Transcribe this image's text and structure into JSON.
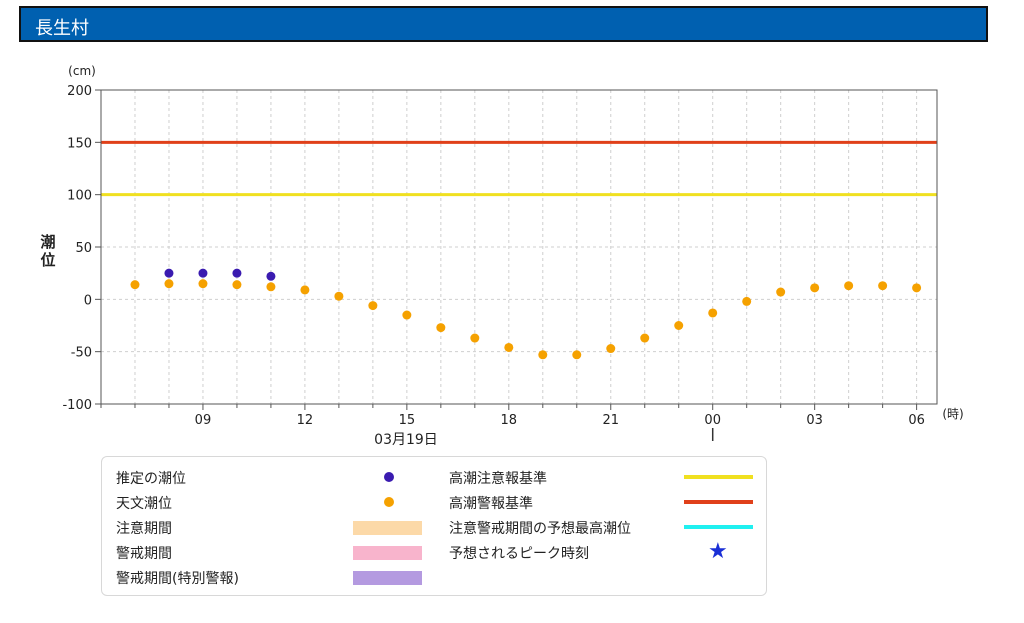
{
  "header": {
    "title": "長生村"
  },
  "colors": {
    "header_bg": "#0060b0",
    "estimated": "#3a1bb0",
    "astronomical": "#f5a100",
    "caution_line": "#f0e020",
    "warning_line": "#e0401a",
    "caution_period": "#fcd9a8",
    "warning_period": "#f8b4cc",
    "special_warning_period": "#b49ae0",
    "peak_line": "#20f0f0",
    "peak_star": "#1a2fd6"
  },
  "chart_data": {
    "type": "scatter",
    "ylabel": "潮位",
    "yunit": "(cm)",
    "xunit": "(時)",
    "ylim": [
      -100,
      200
    ],
    "yticks": [
      "200",
      "150",
      "100",
      "50",
      "0",
      "-50",
      "-100"
    ],
    "xticks": [
      {
        "hour": 9,
        "label": "09"
      },
      {
        "hour": 12,
        "label": "12"
      },
      {
        "hour": 15,
        "label": "15"
      },
      {
        "hour": 18,
        "label": "18"
      },
      {
        "hour": 21,
        "label": "21"
      },
      {
        "hour": 24,
        "label": "00"
      },
      {
        "hour": 27,
        "label": "03"
      },
      {
        "hour": 30,
        "label": "06"
      }
    ],
    "date_label": "03月19日",
    "xlim_hours": [
      6,
      30.6
    ],
    "grid": true,
    "thresholds": [
      {
        "name": "高潮注意報基準",
        "value": 100,
        "color": "#f0e020"
      },
      {
        "name": "高潮警報基準",
        "value": 150,
        "color": "#e0401a"
      }
    ],
    "series": [
      {
        "name": "推定の潮位",
        "color": "#3a1bb0",
        "points": [
          [
            8,
            25
          ],
          [
            9,
            25
          ],
          [
            10,
            25
          ],
          [
            11,
            22
          ]
        ]
      },
      {
        "name": "天文潮位",
        "color": "#f5a100",
        "points": [
          [
            7,
            14
          ],
          [
            8,
            15
          ],
          [
            9,
            15
          ],
          [
            10,
            14
          ],
          [
            11,
            12
          ],
          [
            12,
            9
          ],
          [
            13,
            3
          ],
          [
            14,
            -6
          ],
          [
            15,
            -15
          ],
          [
            16,
            -27
          ],
          [
            17,
            -37
          ],
          [
            18,
            -46
          ],
          [
            19,
            -53
          ],
          [
            20,
            -53
          ],
          [
            21,
            -47
          ],
          [
            22,
            -37
          ],
          [
            23,
            -25
          ],
          [
            24,
            -13
          ],
          [
            25,
            -2
          ],
          [
            26,
            7
          ],
          [
            27,
            11
          ],
          [
            28,
            13
          ],
          [
            29,
            13
          ],
          [
            30,
            11
          ]
        ]
      }
    ]
  },
  "legend": {
    "estimated": "推定の潮位",
    "astronomical": "天文潮位",
    "caution_period": "注意期間",
    "warning_period": "警戒期間",
    "special_warning_period": "警戒期間(特別警報)",
    "caution_standard": "高潮注意報基準",
    "warning_standard": "高潮警報基準",
    "peak_forecast": "注意警戒期間の予想最高潮位",
    "peak_time": "予想されるピーク時刻",
    "star_glyph": "★"
  }
}
